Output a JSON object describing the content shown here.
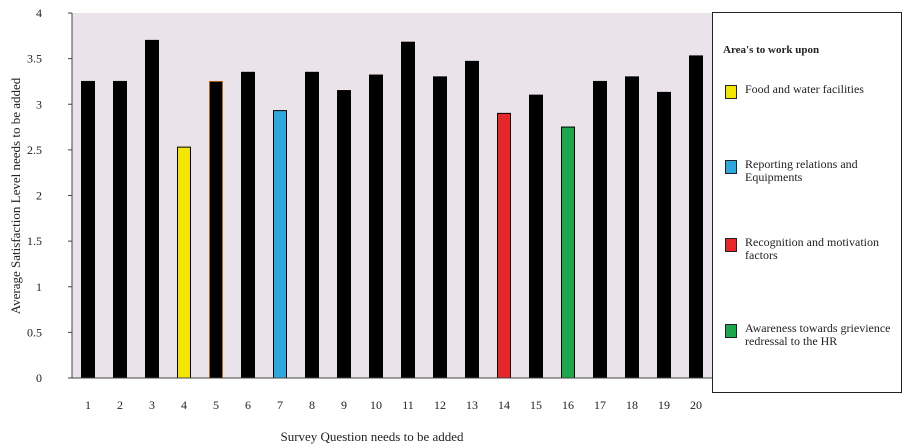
{
  "chart_data": {
    "type": "bar",
    "xlabel": "Survey Question needs to be added",
    "ylabel": "Average Satisfaction Level needs to be added",
    "ylim": [
      0,
      4
    ],
    "yticks": [
      "0",
      "0.5",
      "1",
      "1.5",
      "2",
      "2.5",
      "3",
      "3.5",
      "4"
    ],
    "plot_background": "#ebe3ea",
    "grid": false,
    "legend_placement": "right",
    "categories": [
      "1",
      "2",
      "3",
      "4",
      "5",
      "6",
      "7",
      "8",
      "9",
      "10",
      "11",
      "12",
      "13",
      "14",
      "15",
      "16",
      "17",
      "18",
      "19",
      "20"
    ],
    "values": [
      3.25,
      3.25,
      3.7,
      2.53,
      3.25,
      3.35,
      2.93,
      3.35,
      3.15,
      3.32,
      3.68,
      3.3,
      3.47,
      2.9,
      3.1,
      2.75,
      3.25,
      3.3,
      3.13,
      3.53
    ],
    "bar_colors": [
      "#000000",
      "#000000",
      "#000000",
      "#f2e600",
      "#000000",
      "#000000",
      "#2ea8dc",
      "#000000",
      "#000000",
      "#000000",
      "#000000",
      "#000000",
      "#000000",
      "#e8262a",
      "#000000",
      "#1ca84a",
      "#000000",
      "#000000",
      "#000000",
      "#000000"
    ],
    "bar_edge_colors": [
      "#000000",
      "#000000",
      "#000000",
      "#000000",
      "#b8651a",
      "#000000",
      "#000000",
      "#000000",
      "#000000",
      "#000000",
      "#000000",
      "#000000",
      "#000000",
      "#000000",
      "#000000",
      "#000000",
      "#000000",
      "#000000",
      "#000000",
      "#000000"
    ]
  },
  "legend": {
    "title": "Area's to work upon",
    "items": [
      {
        "label": "Food and water facilities",
        "color": "#f2e600"
      },
      {
        "label": "Reporting relations and Equipments",
        "color": "#2ea8dc"
      },
      {
        "label": "Recognition and motivation factors",
        "color": "#e8262a"
      },
      {
        "label": "Awareness towards grievience redressal to the HR",
        "color": "#1ca84a"
      }
    ]
  }
}
